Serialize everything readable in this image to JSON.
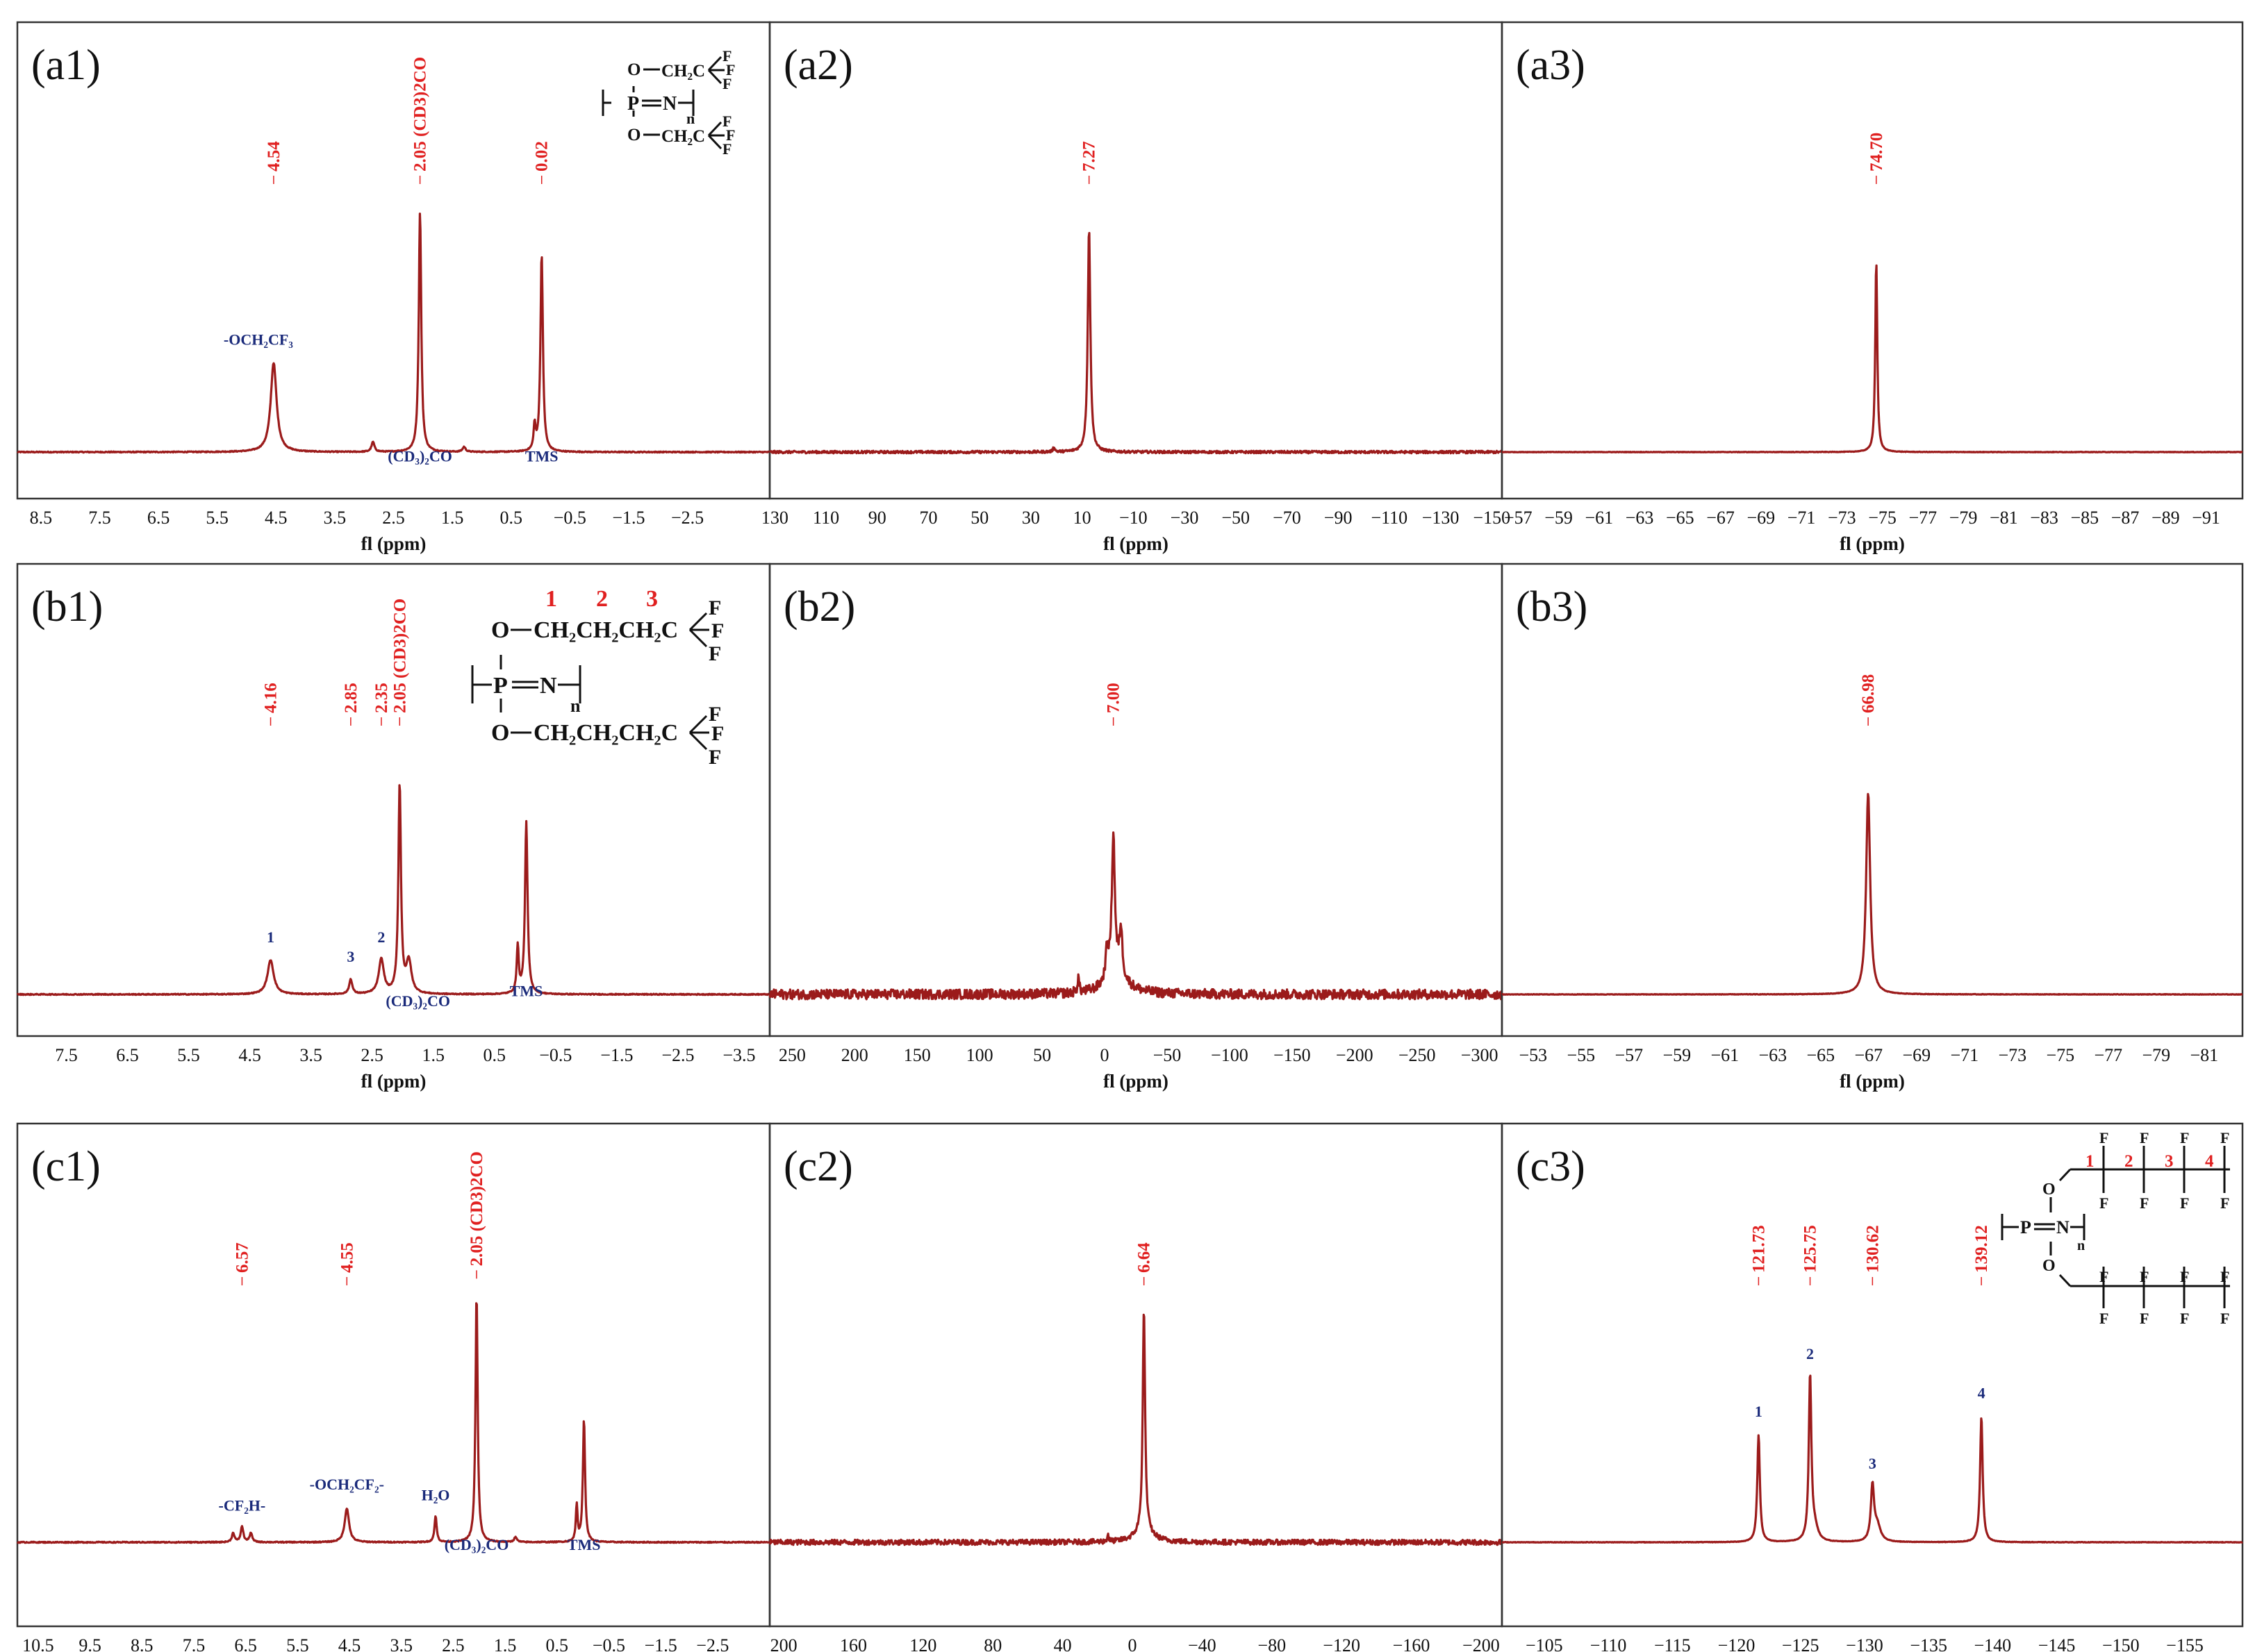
{
  "colors": {
    "spectrum": "#9b1b1b",
    "peak_label": "#e02020",
    "annotation": "#1a2a7a",
    "frame": "#333333"
  },
  "chart_data": [
    {
      "id": "a1",
      "type": "line",
      "panel_label": "(a1)",
      "xlabel": "fl (ppm)",
      "reverse_x": true,
      "xlim": [
        8.9,
        -3.9
      ],
      "ticks": [
        8.5,
        7.5,
        6.5,
        5.5,
        4.5,
        3.5,
        2.5,
        1.5,
        0.5,
        -0.5,
        -1.5,
        -2.5
      ],
      "tick_labels": [
        "8.5",
        "7.5",
        "6.5",
        "5.5",
        "4.5",
        "3.5",
        "2.5",
        "1.5",
        "0.5",
        "−0.5",
        "−1.5",
        "−2.5"
      ],
      "noise": 0.002,
      "peaks": [
        {
          "x": 4.54,
          "h": 0.36,
          "w": 0.06,
          "label": "4.54"
        },
        {
          "x": 2.85,
          "h": 0.04,
          "w": 0.03
        },
        {
          "x": 2.05,
          "h": 0.97,
          "w": 0.025,
          "label": "2.05 (CD3)2CO"
        },
        {
          "x": 1.3,
          "h": 0.02,
          "w": 0.03
        },
        {
          "x": 0.1,
          "h": 0.1,
          "w": 0.02
        },
        {
          "x": -0.02,
          "h": 0.8,
          "w": 0.025,
          "label": "0.02"
        }
      ],
      "annotations": [
        {
          "text": "-OCH₂CF₃",
          "x": 4.8,
          "h": 0.41
        },
        {
          "text": "(CD₃)₂CO",
          "x": 2.05,
          "h": -0.06
        },
        {
          "text": "TMS",
          "x": -0.02,
          "h": -0.06
        }
      ]
    },
    {
      "id": "a2",
      "type": "line",
      "panel_label": "(a2)",
      "xlabel": "fl (ppm)",
      "reverse_x": true,
      "xlim": [
        132,
        -154
      ],
      "ticks": [
        130,
        110,
        90,
        70,
        50,
        30,
        10,
        -10,
        -30,
        -50,
        -70,
        -90,
        -110,
        -130,
        -150
      ],
      "tick_labels": [
        "130",
        "110",
        "90",
        "70",
        "50",
        "30",
        "10",
        "−10",
        "−30",
        "−50",
        "−70",
        "−90",
        "−110",
        "−130",
        "−150"
      ],
      "noise": 0.005,
      "peaks": [
        {
          "x": 7.27,
          "h": 0.9,
          "w": 0.6,
          "label": "7.27"
        },
        {
          "x": 21,
          "h": 0.02,
          "w": 0.4
        }
      ]
    },
    {
      "id": "a3",
      "type": "line",
      "panel_label": "(a3)",
      "xlabel": "fl (ppm)",
      "reverse_x": true,
      "xlim": [
        -56.2,
        -92.8
      ],
      "ticks": [
        -57,
        -59,
        -61,
        -63,
        -65,
        -67,
        -69,
        -71,
        -73,
        -75,
        -77,
        -79,
        -81,
        -83,
        -85,
        -87,
        -89,
        -91
      ],
      "tick_labels": [
        "−57",
        "−59",
        "−61",
        "−63",
        "−65",
        "−67",
        "−69",
        "−71",
        "−73",
        "−75",
        "−77",
        "−79",
        "−81",
        "−83",
        "−85",
        "−87",
        "−89",
        "−91"
      ],
      "noise": 0.001,
      "peaks": [
        {
          "x": -74.7,
          "h": 0.77,
          "w": 0.06,
          "label": "74.70"
        }
      ]
    },
    {
      "id": "b1",
      "type": "line",
      "panel_label": "(b1)",
      "xlabel": "fl (ppm)",
      "reverse_x": true,
      "xlim": [
        8.3,
        -4.0
      ],
      "ticks": [
        7.5,
        6.5,
        5.5,
        4.5,
        3.5,
        2.5,
        1.5,
        0.5,
        -0.5,
        -1.5,
        -2.5,
        -3.5
      ],
      "tick_labels": [
        "7.5",
        "6.5",
        "5.5",
        "4.5",
        "3.5",
        "2.5",
        "1.5",
        "0.5",
        "−0.5",
        "−1.5",
        "−2.5",
        "−3.5"
      ],
      "noise": 0.002,
      "peaks": [
        {
          "x": 4.16,
          "h": 0.14,
          "w": 0.06,
          "label": "4.16"
        },
        {
          "x": 2.85,
          "h": 0.06,
          "w": 0.03,
          "label": "2.85"
        },
        {
          "x": 2.35,
          "h": 0.14,
          "w": 0.05,
          "label": "2.35"
        },
        {
          "x": 2.05,
          "h": 0.85,
          "w": 0.025,
          "label": "2.05 (CD3)2CO"
        },
        {
          "x": 1.9,
          "h": 0.13,
          "w": 0.05
        },
        {
          "x": 0.12,
          "h": 0.19,
          "w": 0.02
        },
        {
          "x": -0.02,
          "h": 0.7,
          "w": 0.025
        }
      ],
      "annotations": [
        {
          "text": "1",
          "x": 4.16,
          "h": 0.19
        },
        {
          "text": "3",
          "x": 2.85,
          "h": 0.11
        },
        {
          "text": "2",
          "x": 2.35,
          "h": 0.19
        },
        {
          "text": "(CD₃)₂CO",
          "x": 1.75,
          "h": -0.07
        },
        {
          "text": "TMS",
          "x": -0.02,
          "h": -0.03
        }
      ]
    },
    {
      "id": "b2",
      "type": "line",
      "panel_label": "(b2)",
      "xlabel": "fl (ppm)",
      "reverse_x": true,
      "xlim": [
        268,
        -318
      ],
      "ticks": [
        250,
        200,
        150,
        100,
        50,
        0,
        -50,
        -100,
        -150,
        -200,
        -250,
        -300
      ],
      "tick_labels": [
        "250",
        "200",
        "150",
        "100",
        "50",
        "0",
        "−50",
        "−100",
        "−150",
        "−200",
        "−250",
        "−300"
      ],
      "noise": 0.02,
      "peaks": [
        {
          "x": -7.0,
          "h": 0.58,
          "w": 1.5,
          "label": "7.00"
        },
        {
          "x": -13,
          "h": 0.2,
          "w": 1.5
        },
        {
          "x": -2,
          "h": 0.12,
          "w": 1.5
        },
        {
          "x": 21,
          "h": 0.06,
          "w": 0.8
        },
        {
          "x": -10,
          "h": 0.06,
          "w": 12
        }
      ]
    },
    {
      "id": "b3",
      "type": "line",
      "panel_label": "(b3)",
      "xlabel": "fl (ppm)",
      "reverse_x": true,
      "xlim": [
        -51.7,
        -82.6
      ],
      "ticks": [
        -53,
        -55,
        -57,
        -59,
        -61,
        -63,
        -65,
        -67,
        -69,
        -71,
        -73,
        -75,
        -77,
        -79,
        -81
      ],
      "tick_labels": [
        "−53",
        "−55",
        "−57",
        "−59",
        "−61",
        "−63",
        "−65",
        "−67",
        "−69",
        "−71",
        "−73",
        "−75",
        "−77",
        "−79",
        "−81"
      ],
      "noise": 0.001,
      "peaks": [
        {
          "x": -66.98,
          "h": 0.82,
          "w": 0.1,
          "label": "66.98"
        }
      ]
    },
    {
      "id": "c1",
      "type": "line",
      "panel_label": "(c1)",
      "xlabel": "fl (ppm)",
      "reverse_x": true,
      "xlim": [
        10.9,
        -3.6
      ],
      "ticks": [
        10.5,
        9.5,
        8.5,
        7.5,
        6.5,
        5.5,
        4.5,
        3.5,
        2.5,
        1.5,
        0.5,
        -0.5,
        -1.5,
        -2.5
      ],
      "tick_labels": [
        "10.5",
        "9.5",
        "8.5",
        "7.5",
        "6.5",
        "5.5",
        "4.5",
        "3.5",
        "2.5",
        "1.5",
        "0.5",
        "−0.5",
        "−1.5",
        "−2.5"
      ],
      "noise": 0.002,
      "peaks": [
        {
          "x": 6.74,
          "h": 0.035,
          "w": 0.03
        },
        {
          "x": 6.57,
          "h": 0.06,
          "w": 0.03,
          "label": "6.57"
        },
        {
          "x": 6.4,
          "h": 0.035,
          "w": 0.03
        },
        {
          "x": 4.55,
          "h": 0.13,
          "w": 0.05,
          "label": "4.55"
        },
        {
          "x": 2.84,
          "h": 0.1,
          "w": 0.025
        },
        {
          "x": 2.05,
          "h": 0.95,
          "w": 0.025,
          "label": "2.05 (CD3)2CO"
        },
        {
          "x": 1.3,
          "h": 0.02,
          "w": 0.03
        },
        {
          "x": 0.12,
          "h": 0.14,
          "w": 0.02
        },
        {
          "x": -0.02,
          "h": 0.47,
          "w": 0.025
        }
      ],
      "annotations": [
        {
          "text": "-CF₂H-",
          "x": 6.57,
          "h": 0.1
        },
        {
          "text": "-OCH₂CF₂-",
          "x": 4.55,
          "h": 0.18
        },
        {
          "text": "H₂O",
          "x": 2.84,
          "h": 0.14
        },
        {
          "text": "(CD₃)₂CO",
          "x": 2.05,
          "h": -0.05
        },
        {
          "text": "TMS",
          "x": -0.02,
          "h": -0.05
        }
      ]
    },
    {
      "id": "c2",
      "type": "line",
      "panel_label": "(c2)",
      "xlabel": "fl (ppm)",
      "reverse_x": true,
      "xlim": [
        208,
        -212
      ],
      "ticks": [
        200,
        160,
        120,
        80,
        40,
        0,
        -40,
        -80,
        -120,
        -160,
        -200
      ],
      "tick_labels": [
        "200",
        "160",
        "120",
        "80",
        "40",
        "0",
        "−40",
        "−80",
        "−120",
        "−160",
        "−200"
      ],
      "noise": 0.01,
      "peaks": [
        {
          "x": -6.64,
          "h": 0.85,
          "w": 0.8,
          "label": "6.64"
        },
        {
          "x": -6.64,
          "h": 0.04,
          "w": 6
        },
        {
          "x": 14,
          "h": 0.03,
          "w": 0.4
        }
      ]
    },
    {
      "id": "c3",
      "type": "line",
      "panel_label": "(c3)",
      "xlabel": "fl (ppm)",
      "reverse_x": true,
      "xlim": [
        -101.7,
        -159.5
      ],
      "ticks": [
        -105,
        -110,
        -115,
        -120,
        -125,
        -130,
        -135,
        -140,
        -145,
        -150,
        -155
      ],
      "tick_labels": [
        "−105",
        "−110",
        "−115",
        "−120",
        "−125",
        "−130",
        "−135",
        "−140",
        "−145",
        "−150",
        "−155"
      ],
      "noise": 0.001,
      "peaks": [
        {
          "x": -121.73,
          "h": 0.41,
          "w": 0.12,
          "label": "121.73"
        },
        {
          "x": -125.75,
          "h": 0.63,
          "w": 0.12,
          "label": "125.75"
        },
        {
          "x": -126.1,
          "h": 0.05,
          "w": 0.3
        },
        {
          "x": -130.62,
          "h": 0.21,
          "w": 0.15,
          "label": "130.62"
        },
        {
          "x": -131.0,
          "h": 0.06,
          "w": 0.3
        },
        {
          "x": -139.12,
          "h": 0.48,
          "w": 0.12,
          "label": "139.12"
        }
      ],
      "annotations": [
        {
          "text": "1",
          "x": -121.73,
          "h": 0.46
        },
        {
          "text": "2",
          "x": -125.75,
          "h": 0.68
        },
        {
          "text": "3",
          "x": -130.62,
          "h": 0.26
        },
        {
          "text": "4",
          "x": -139.12,
          "h": 0.53
        }
      ]
    }
  ],
  "structures": {
    "a": {
      "f_label": "F",
      "o_label": "O",
      "chain": "CH₂C",
      "p_label": "P",
      "n_label": "N",
      "n_sub": "n"
    },
    "b": {
      "f_label": "F",
      "o_label": "O",
      "chain": "CH₂CH₂CH₂C",
      "p_label": "P",
      "n_label": "N",
      "n_sub": "n",
      "numbers": [
        "1",
        "2",
        "3"
      ]
    },
    "c": {
      "f_label": "F",
      "o_label": "O",
      "p_label": "P",
      "n_label": "N",
      "n_sub": "n",
      "numbers": [
        "1",
        "2",
        "3",
        "4"
      ]
    }
  }
}
